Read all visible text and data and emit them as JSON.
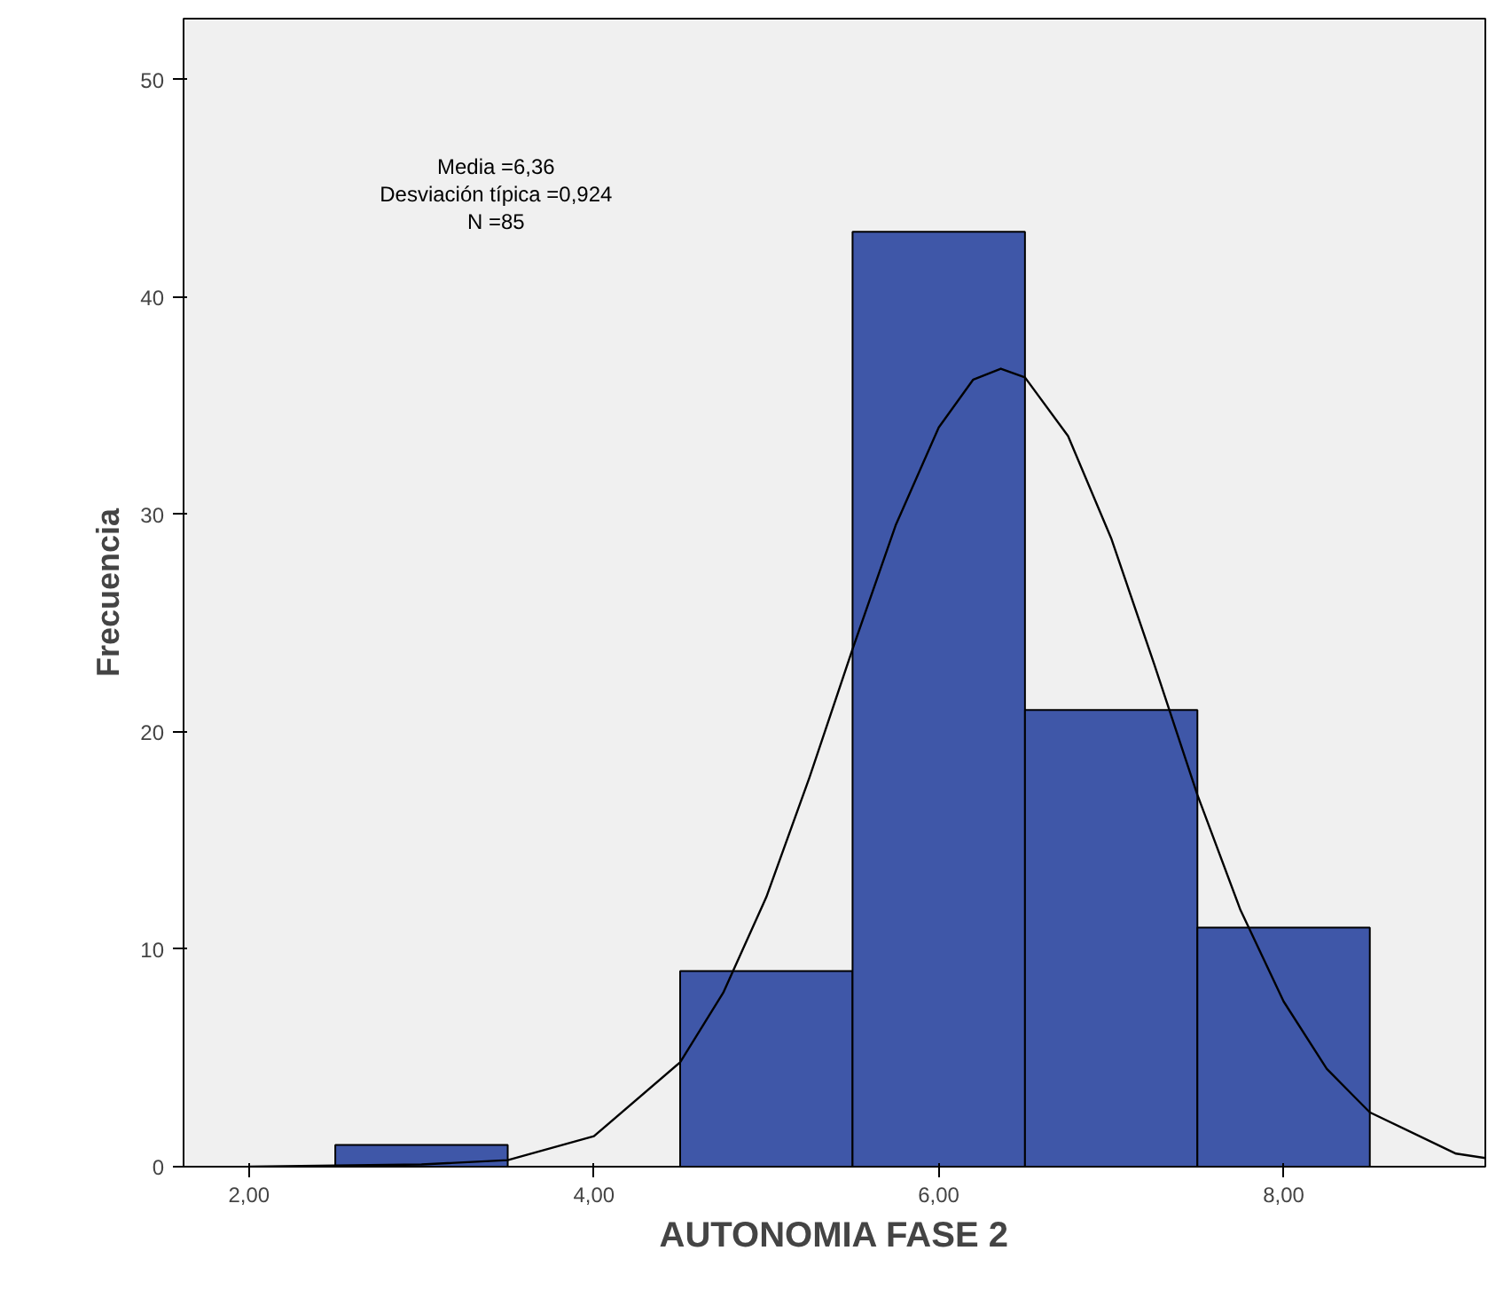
{
  "chart_data": {
    "type": "histogram",
    "xlabel": "AUTONOMIA FASE 2",
    "ylabel": "Frecuencia",
    "bins": [
      2.5,
      3.5,
      4.5,
      5.5,
      6.5,
      7.5,
      8.5
    ],
    "values": [
      1,
      0,
      9,
      43,
      21,
      11
    ],
    "color": "#3f57a8",
    "series": [
      {
        "type": "line",
        "color": "#000000",
        "x": [
          2.0,
          3.0,
          3.5,
          4.0,
          4.5,
          4.75,
          5.0,
          5.25,
          5.5,
          5.75,
          6.0,
          6.2,
          6.36,
          6.5,
          6.75,
          7.0,
          7.25,
          7.5,
          7.75,
          8.0,
          8.25,
          8.5,
          9.0,
          9.17
        ],
        "values": [
          0.0,
          0.1,
          0.3,
          1.4,
          4.8,
          8.0,
          12.4,
          17.9,
          23.8,
          29.5,
          34.0,
          36.2,
          36.7,
          36.3,
          33.6,
          28.9,
          23.1,
          17.1,
          11.8,
          7.6,
          4.5,
          2.5,
          0.6,
          0.4
        ]
      }
    ],
    "xlim": [
      1.62,
      9.17
    ],
    "ylim": [
      0,
      52.8
    ],
    "xticks": [
      {
        "value": 2,
        "label": "2,00"
      },
      {
        "value": 4,
        "label": "4,00"
      },
      {
        "value": 6,
        "label": "6,00"
      },
      {
        "value": 8,
        "label": "8,00"
      }
    ],
    "yticks": [
      0,
      10,
      20,
      30,
      40,
      50
    ],
    "grid": false,
    "annotations": [
      "Media =6,36",
      "Desviación típica =0,924",
      "N =85"
    ]
  }
}
